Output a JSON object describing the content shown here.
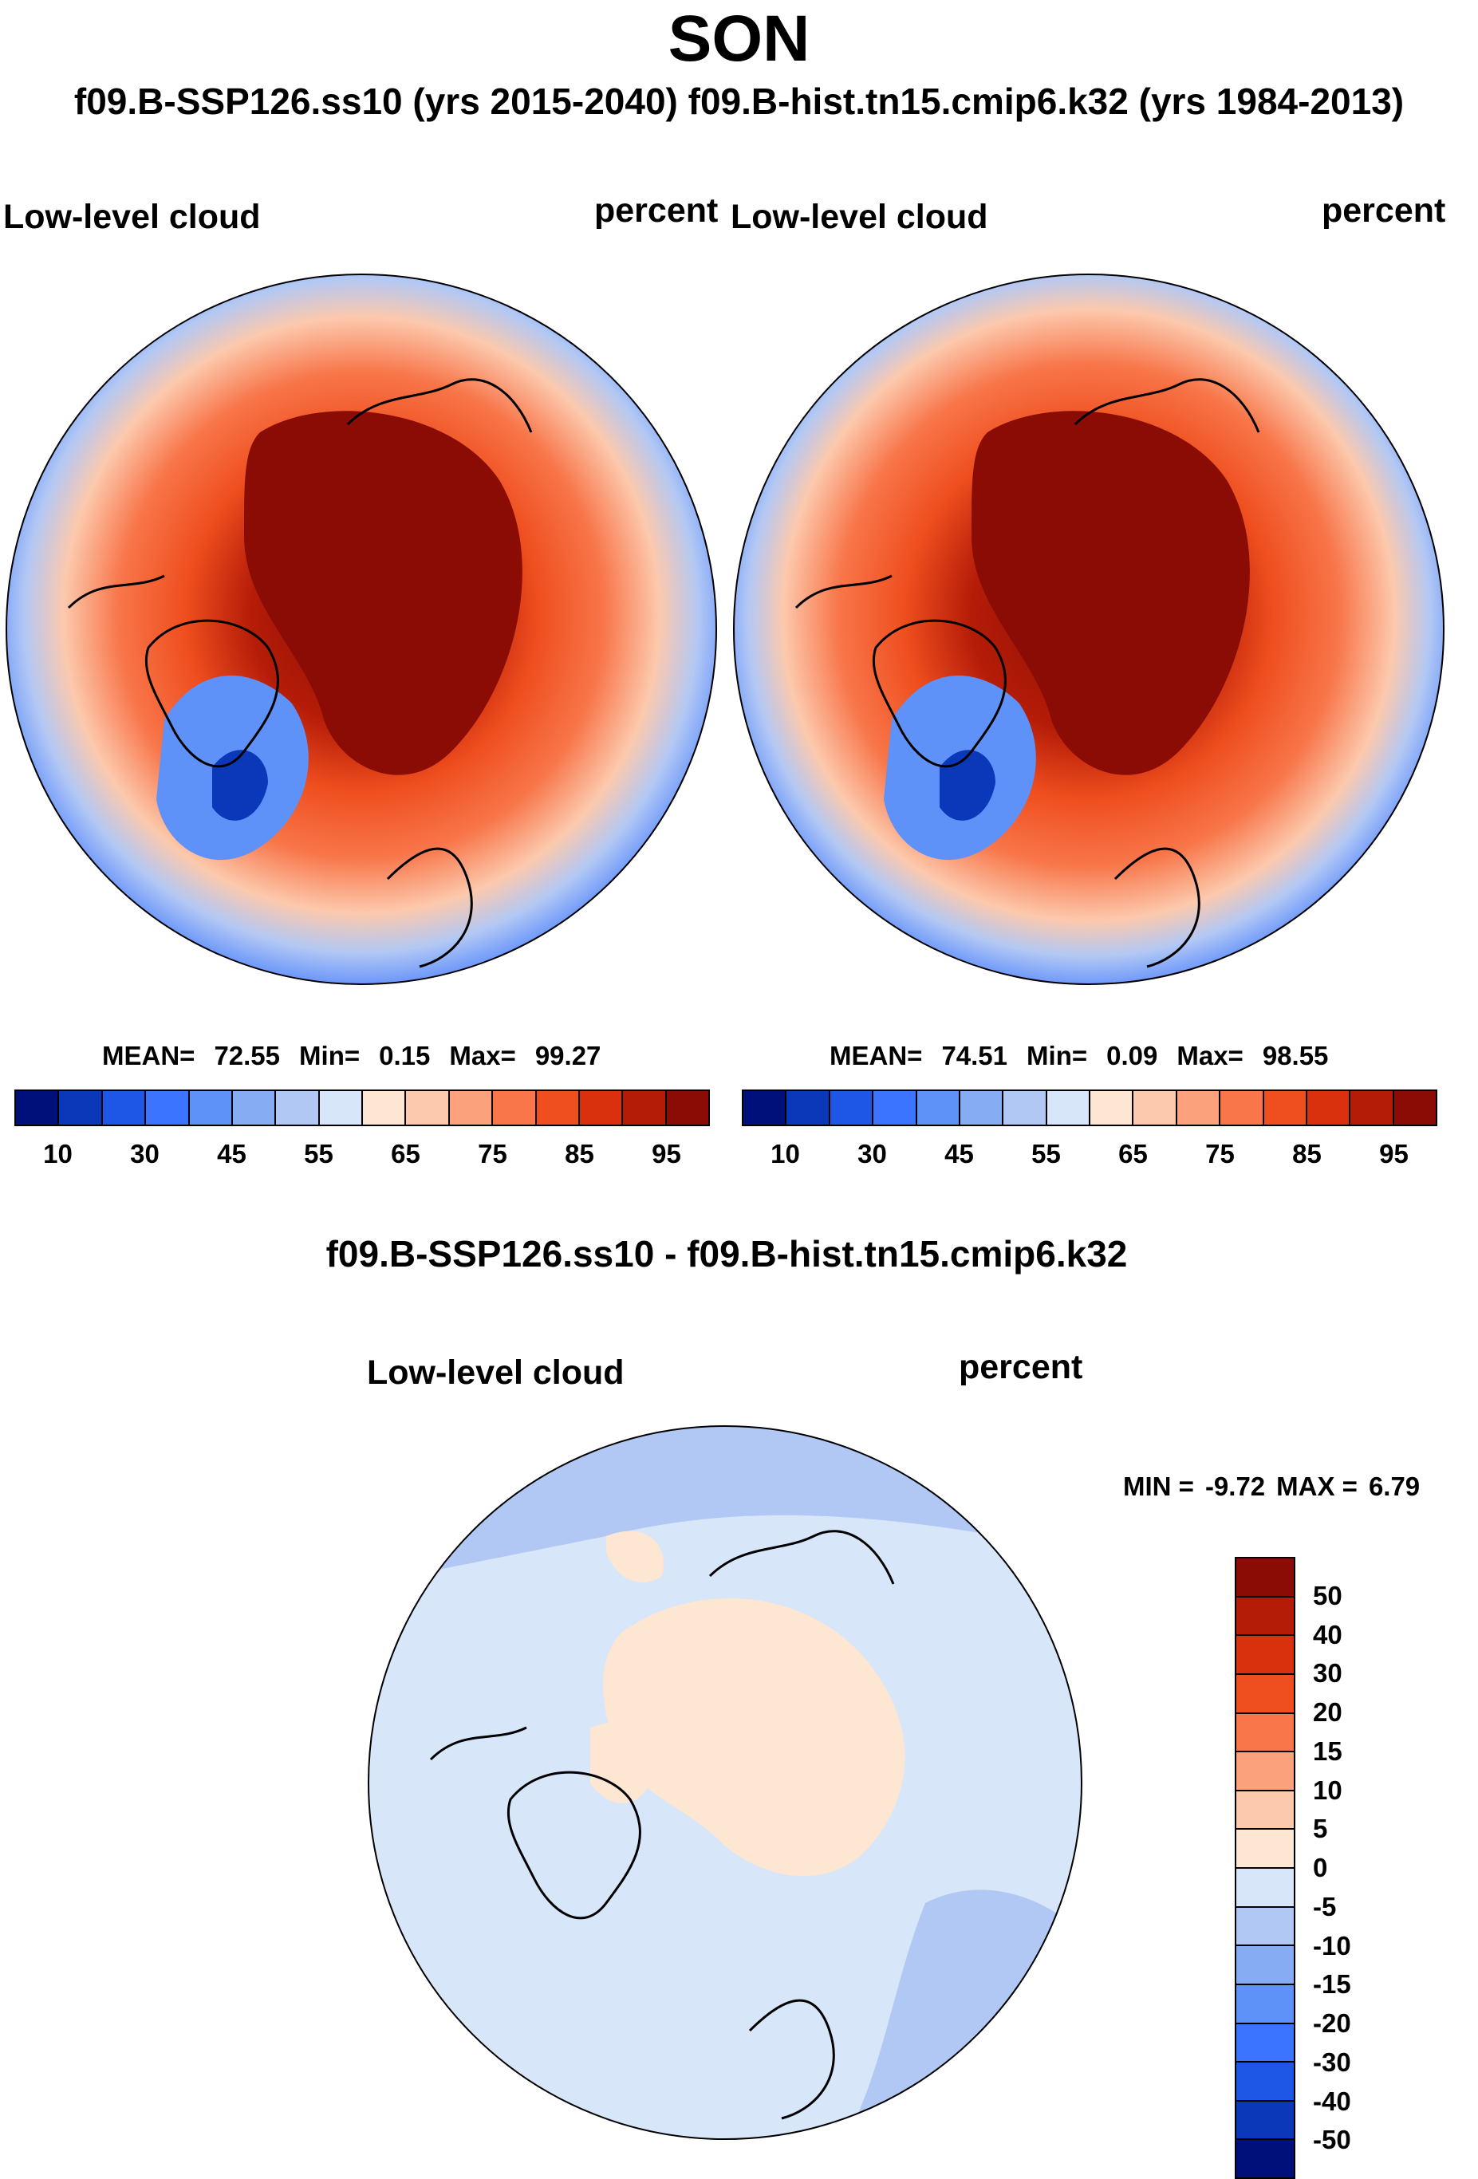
{
  "figure": {
    "season": "SON",
    "subtitle": "f09.B-SSP126.ss10 (yrs 2015-2040)  f09.B-hist.tn15.cmip6.k32 (yrs 1984-2013)",
    "diff_title": "f09.B-SSP126.ss10 - f09.B-hist.tn15.cmip6.k32"
  },
  "panels": {
    "left": {
      "variable": "Low-level cloud",
      "units": "percent",
      "stats": {
        "mean_label": "MEAN=",
        "mean": "72.55",
        "min_label": "Min=",
        "min": "0.15",
        "max_label": "Max=",
        "max": "99.27"
      }
    },
    "right": {
      "variable": "Low-level cloud",
      "units": "percent",
      "stats": {
        "mean_label": "MEAN=",
        "mean": "74.51",
        "min_label": "Min=",
        "min": "0.09",
        "max_label": "Max=",
        "max": "98.55"
      }
    },
    "diff": {
      "variable": "Low-level cloud",
      "units": "percent",
      "stats": {
        "min_label": "MIN =",
        "min": "-9.72",
        "max_label": "MAX =",
        "max": "6.79"
      }
    }
  },
  "colorbars": {
    "abs": {
      "ticks": [
        "10",
        "30",
        "45",
        "55",
        "65",
        "75",
        "85",
        "95"
      ],
      "colors": [
        "#00107a",
        "#0a38b8",
        "#1e56e6",
        "#3a74ff",
        "#5e92f8",
        "#86acf4",
        "#b2c8f4",
        "#d8e6fa",
        "#fde6d2",
        "#fcc9ad",
        "#fba27d",
        "#f8764a",
        "#ef4e1e",
        "#d9300e",
        "#b51c08",
        "#8a0c04"
      ]
    },
    "diff": {
      "ticks": [
        "50",
        "40",
        "30",
        "20",
        "15",
        "10",
        "5",
        "0",
        "-5",
        "-10",
        "-15",
        "-20",
        "-30",
        "-40",
        "-50"
      ],
      "colors": [
        "#8a0c04",
        "#b51c08",
        "#d9300e",
        "#ef4e1e",
        "#f8764a",
        "#fba27d",
        "#fcc9ad",
        "#fde6d2",
        "#d8e6fa",
        "#b2c8f4",
        "#86acf4",
        "#5e92f8",
        "#3a74ff",
        "#1e56e6",
        "#0a38b8",
        "#00107a"
      ]
    }
  },
  "map_colors": {
    "land_outline": "#000000",
    "ocean_edge": "#3d6fe6",
    "mid_ring": "#f07a4c",
    "pole": "#8e0d05",
    "diff_base": "#d8e6fa",
    "diff_pos": "#fde6d2",
    "diff_neg": "#b2c8f4"
  }
}
